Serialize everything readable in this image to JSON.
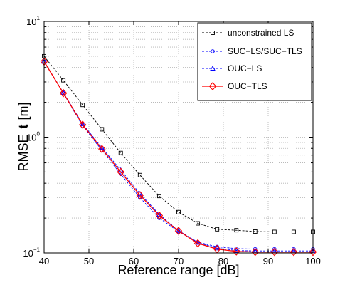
{
  "chart_data": {
    "type": "line",
    "xlabel": "Reference range [dB]",
    "ylabel_main": "RMSE",
    "ylabel_bold": "t",
    "ylabel_unit": "[m]",
    "xlim": [
      40,
      100
    ],
    "ylim": [
      0.1,
      10
    ],
    "y_scale": "log",
    "grid": true,
    "legend_position": "top-right",
    "x_ticks": [
      {
        "value": 40,
        "label": "40"
      },
      {
        "value": 50,
        "label": "50"
      },
      {
        "value": 60,
        "label": "60"
      },
      {
        "value": 70,
        "label": "70"
      },
      {
        "value": 80,
        "label": "80"
      },
      {
        "value": 90,
        "label": "90"
      },
      {
        "value": 100,
        "label": "100"
      }
    ],
    "y_ticks": [
      {
        "value": 0.1,
        "base": "10",
        "exp": "−1"
      },
      {
        "value": 1,
        "base": "10",
        "exp": "0"
      },
      {
        "value": 10,
        "base": "10",
        "exp": "1"
      }
    ],
    "x": [
      40,
      44.3,
      48.6,
      52.9,
      57.1,
      61.4,
      65.7,
      70,
      74.3,
      78.6,
      82.9,
      87.1,
      91.4,
      95.7,
      100
    ],
    "series": [
      {
        "name": "unconstrained LS",
        "color": "#000000",
        "line": "dashed",
        "marker": "square",
        "values": [
          5.0,
          3.1,
          1.9,
          1.17,
          0.73,
          0.47,
          0.31,
          0.225,
          0.18,
          0.16,
          0.157,
          0.153,
          0.152,
          0.152,
          0.152
        ]
      },
      {
        "name": "SUC−LS/SUC−TLS",
        "color": "#0000ff",
        "line": "dashed",
        "marker": "circle",
        "values": [
          4.5,
          2.4,
          1.25,
          0.77,
          0.48,
          0.3,
          0.2,
          0.153,
          0.124,
          0.113,
          0.109,
          0.108,
          0.108,
          0.108,
          0.108
        ]
      },
      {
        "name": "OUC−LS",
        "color": "#0000ff",
        "line": "dashed",
        "marker": "triangle",
        "values": [
          4.5,
          2.42,
          1.3,
          0.81,
          0.52,
          0.325,
          0.215,
          0.156,
          0.123,
          0.11,
          0.105,
          0.104,
          0.104,
          0.104,
          0.104
        ]
      },
      {
        "name": "OUC−TLS",
        "color": "#ff0000",
        "line": "solid",
        "marker": "diamond",
        "values": [
          4.5,
          2.4,
          1.28,
          0.79,
          0.5,
          0.315,
          0.21,
          0.155,
          0.121,
          0.108,
          0.103,
          0.102,
          0.102,
          0.102,
          0.102
        ]
      }
    ]
  }
}
